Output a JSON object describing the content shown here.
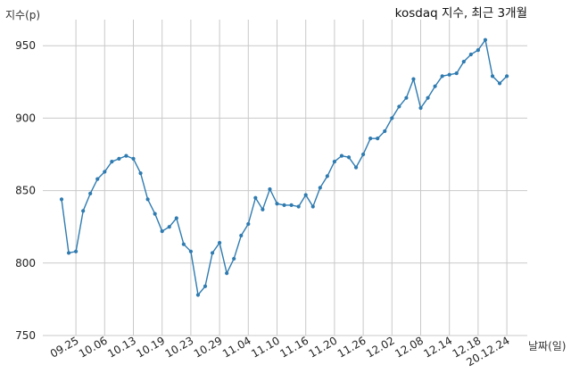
{
  "chart_data": {
    "type": "line",
    "title": "kosdaq 지수, 최근 3개월",
    "xlabel": "날짜(일)",
    "ylabel": "지수(p)",
    "ylim": [
      750,
      968
    ],
    "yticks": [
      750,
      800,
      850,
      900,
      950
    ],
    "xticks": [
      "09.25",
      "10.06",
      "10.13",
      "10.19",
      "10.23",
      "10.29",
      "11.04",
      "11.10",
      "11.16",
      "11.20",
      "11.26",
      "12.02",
      "12.08",
      "12.14",
      "12.18",
      "20.12.24"
    ],
    "xtick_index_start": 2,
    "grid": true,
    "series_color": "#2f7bb0",
    "grid_color": "#c9c9c9",
    "values": [
      844,
      807,
      808,
      836,
      848,
      858,
      863,
      870,
      872,
      874,
      872,
      862,
      844,
      834,
      822,
      825,
      831,
      813,
      808,
      778,
      784,
      807,
      814,
      793,
      803,
      819,
      827,
      845,
      837,
      851,
      841,
      840,
      840,
      839,
      847,
      839,
      852,
      860,
      870,
      874,
      873,
      866,
      875,
      886,
      886,
      891,
      900,
      908,
      914,
      927,
      907,
      914,
      922,
      929,
      930,
      931,
      939,
      944,
      947,
      954,
      929,
      924,
      929
    ]
  }
}
